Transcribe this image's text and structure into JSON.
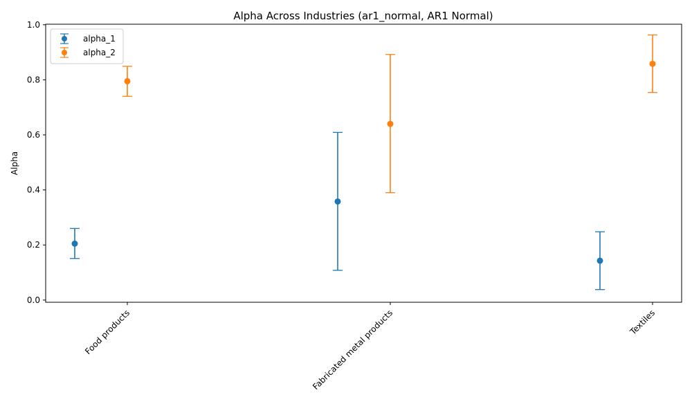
{
  "chart_data": {
    "type": "scatter",
    "title": "Alpha Across Industries (ar1_normal, AR1 Normal)",
    "xlabel": "",
    "ylabel": "Alpha",
    "categories": [
      "Food products",
      "Fabricated metal products",
      "Textiles"
    ],
    "ylim": [
      -0.008,
      1.002
    ],
    "yticks": [
      "0.0",
      "0.2",
      "0.4",
      "0.6",
      "0.8",
      "1.0"
    ],
    "grid": false,
    "legend_position": "top-left",
    "series": [
      {
        "name": "alpha_1",
        "color": "#1f77b4",
        "values": [
          0.205,
          0.358,
          0.143
        ],
        "lower": [
          0.151,
          0.108,
          0.038
        ],
        "upper": [
          0.26,
          0.609,
          0.248
        ]
      },
      {
        "name": "alpha_2",
        "color": "#ff7f0e",
        "values": [
          0.795,
          0.64,
          0.858
        ],
        "lower": [
          0.74,
          0.39,
          0.754
        ],
        "upper": [
          0.849,
          0.892,
          0.963
        ]
      }
    ]
  }
}
